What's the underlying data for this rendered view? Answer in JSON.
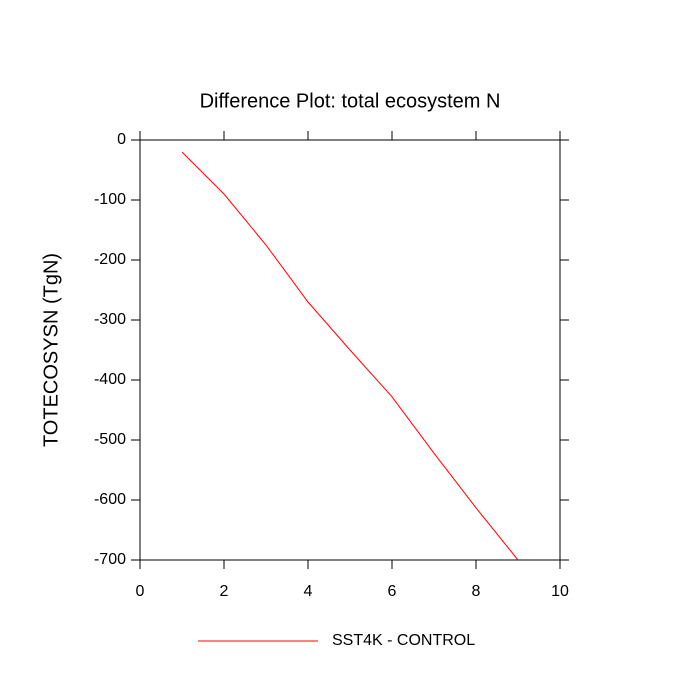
{
  "chart_data": {
    "type": "line",
    "title": "Difference Plot: total ecosystem N",
    "y_label": "TOTECOSYSN  (TgN)",
    "x": [
      1,
      2,
      3,
      4,
      5,
      6,
      7,
      8,
      9
    ],
    "series": [
      {
        "name": "SST4K - CONTROL",
        "color": "#ff0000",
        "values": [
          -20,
          -90,
          -175,
          -270,
          -350,
          -428,
          -522,
          -613,
          -700
        ]
      }
    ],
    "xlim": [
      0,
      10
    ],
    "xticks": [
      0,
      2,
      4,
      6,
      8,
      10
    ],
    "ylim": [
      -700,
      0
    ],
    "yticks": [
      0,
      -100,
      -200,
      -300,
      -400,
      -500,
      -600,
      -700
    ],
    "grid": false,
    "legend": "bottom"
  }
}
